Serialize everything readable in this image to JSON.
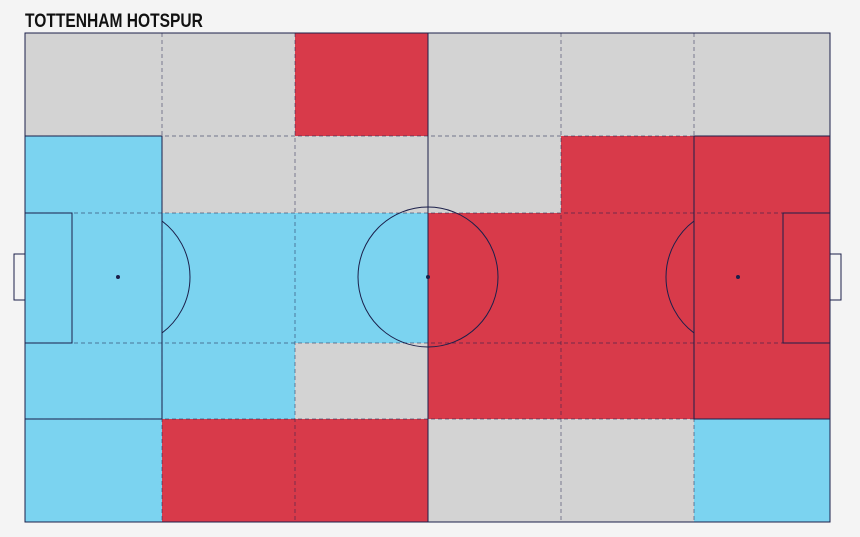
{
  "title": "TOTTENHAM HOTSPUR",
  "zones": [
    [
      "#d3d3d3",
      "#d3d3d3",
      "#d83a4a",
      "#d3d3d3",
      "#d3d3d3",
      "#d3d3d3"
    ],
    [
      "#7bd3f0",
      "#d3d3d3",
      "#d3d3d3",
      "#d3d3d3",
      "#d83a4a",
      "#d83a4a"
    ],
    [
      "#7bd3f0",
      "#7bd3f0",
      "#7bd3f0",
      "#d83a4a",
      "#d83a4a",
      "#d83a4a"
    ],
    [
      "#7bd3f0",
      "#7bd3f0",
      "#d3d3d3",
      "#d83a4a",
      "#d83a4a",
      "#d83a4a"
    ],
    [
      "#7bd3f0",
      "#d83a4a",
      "#d83a4a",
      "#d3d3d3",
      "#d3d3d3",
      "#7bd3f0"
    ]
  ]
}
